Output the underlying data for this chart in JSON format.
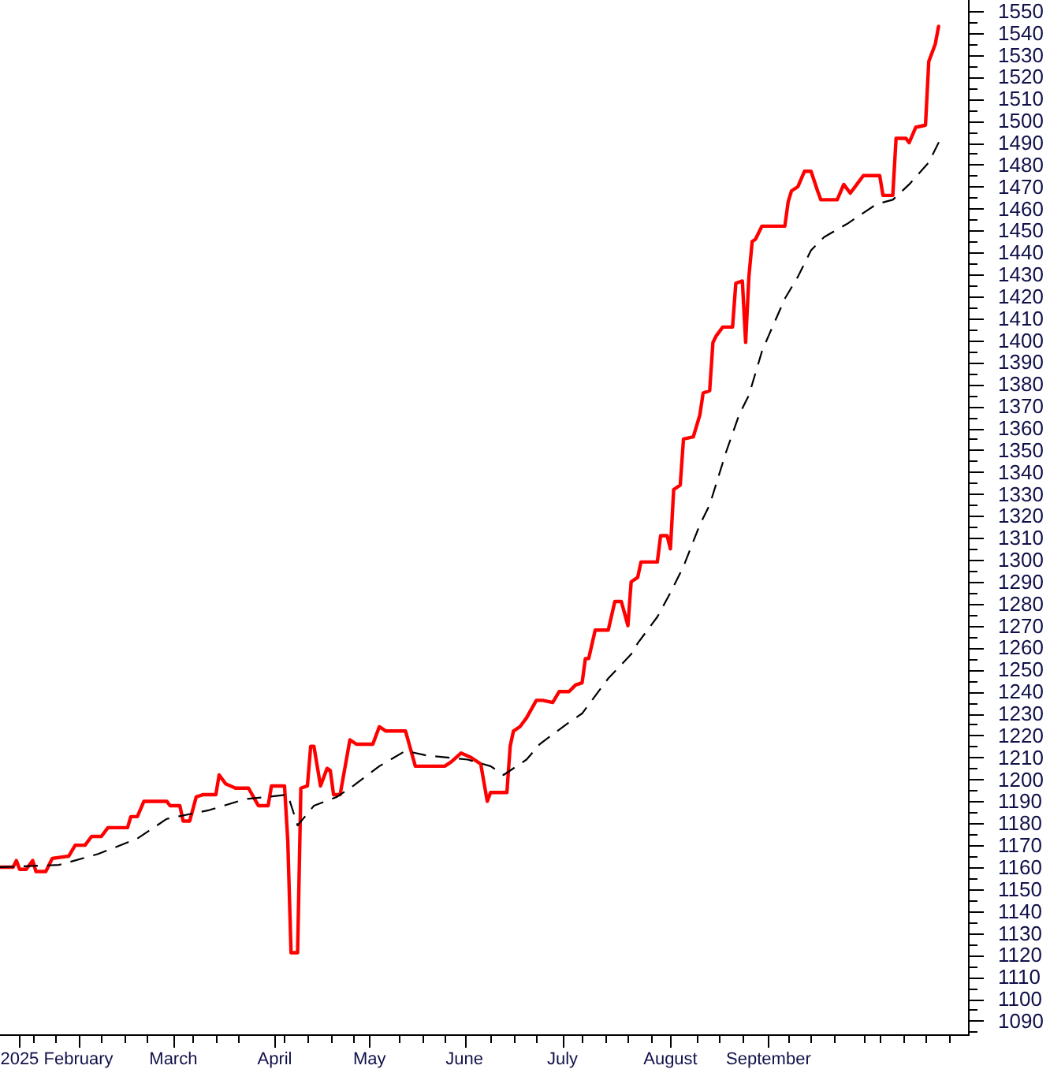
{
  "chart_data": {
    "type": "line",
    "xlim": [
      "2025-01-10",
      "2025-11-02"
    ],
    "xticks": [
      {
        "value": "2025-01-16",
        "label": "2025"
      },
      {
        "value": "2025-01-20",
        "label": null
      },
      {
        "value": "2025-01-27",
        "label": null
      },
      {
        "value": "2025-02-03",
        "label": "February"
      },
      {
        "value": "2025-02-10",
        "label": null
      },
      {
        "value": "2025-02-17",
        "label": null
      },
      {
        "value": "2025-02-24",
        "label": null
      },
      {
        "value": "2025-03-04",
        "label": "March"
      },
      {
        "value": "2025-03-10",
        "label": null
      },
      {
        "value": "2025-03-17",
        "label": null
      },
      {
        "value": "2025-03-24",
        "label": null
      },
      {
        "value": "2025-04-04",
        "label": "April"
      },
      {
        "value": "2025-04-07",
        "label": null
      },
      {
        "value": "2025-04-14",
        "label": null
      },
      {
        "value": "2025-04-21",
        "label": null
      },
      {
        "value": "2025-04-28",
        "label": null
      },
      {
        "value": "2025-05-03",
        "label": "May"
      },
      {
        "value": "2025-05-12",
        "label": null
      },
      {
        "value": "2025-05-19",
        "label": null
      },
      {
        "value": "2025-05-26",
        "label": null
      },
      {
        "value": "2025-06-01",
        "label": "June"
      },
      {
        "value": "2025-06-09",
        "label": null
      },
      {
        "value": "2025-06-16",
        "label": null
      },
      {
        "value": "2025-06-23",
        "label": null
      },
      {
        "value": "2025-07-01",
        "label": "July"
      },
      {
        "value": "2025-07-07",
        "label": null
      },
      {
        "value": "2025-07-14",
        "label": null
      },
      {
        "value": "2025-07-21",
        "label": null
      },
      {
        "value": "2025-07-28",
        "label": null
      },
      {
        "value": "2025-08-03",
        "label": "August"
      },
      {
        "value": "2025-08-11",
        "label": null
      },
      {
        "value": "2025-08-18",
        "label": null
      },
      {
        "value": "2025-08-25",
        "label": null
      },
      {
        "value": "2025-09-02",
        "label": "September"
      },
      {
        "value": "2025-09-08",
        "label": null
      },
      {
        "value": "2025-09-15",
        "label": null
      },
      {
        "value": "2025-09-22",
        "label": null
      },
      {
        "value": "2025-10-01",
        "label": null
      },
      {
        "value": "2025-10-06",
        "label": null
      },
      {
        "value": "2025-10-13",
        "label": null
      },
      {
        "value": "2025-10-20",
        "label": null
      },
      {
        "value": "2025-10-27",
        "label": null
      }
    ],
    "ylim": [
      1083.5,
      1555
    ],
    "yticks": [
      {
        "value": 1085,
        "label": null
      },
      1090,
      {
        "value": 1095,
        "label": null
      },
      1100,
      {
        "value": 1105,
        "label": null
      },
      1110,
      {
        "value": 1115,
        "label": null
      },
      1120,
      {
        "value": 1125,
        "label": null
      },
      1130,
      {
        "value": 1135,
        "label": null
      },
      1140,
      {
        "value": 1145,
        "label": null
      },
      1150,
      {
        "value": 1155,
        "label": null
      },
      1160,
      {
        "value": 1165,
        "label": null
      },
      1170,
      {
        "value": 1175,
        "label": null
      },
      1180,
      {
        "value": 1185,
        "label": null
      },
      1190,
      {
        "value": 1195,
        "label": null
      },
      1200,
      {
        "value": 1205,
        "label": null
      },
      1210,
      {
        "value": 1215,
        "label": null
      },
      1220,
      {
        "value": 1225,
        "label": null
      },
      1230,
      {
        "value": 1235,
        "label": null
      },
      1240,
      {
        "value": 1245,
        "label": null
      },
      1250,
      {
        "value": 1255,
        "label": null
      },
      1260,
      {
        "value": 1265,
        "label": null
      },
      1270,
      {
        "value": 1275,
        "label": null
      },
      1280,
      {
        "value": 1285,
        "label": null
      },
      1290,
      {
        "value": 1295,
        "label": null
      },
      1300,
      {
        "value": 1305,
        "label": null
      },
      1310,
      {
        "value": 1315,
        "label": null
      },
      1320,
      {
        "value": 1325,
        "label": null
      },
      1330,
      {
        "value": 1335,
        "label": null
      },
      1340,
      {
        "value": 1345,
        "label": null
      },
      1350,
      {
        "value": 1355,
        "label": null
      },
      1360,
      {
        "value": 1365,
        "label": null
      },
      1370,
      {
        "value": 1375,
        "label": null
      },
      1380,
      {
        "value": 1385,
        "label": null
      },
      1390,
      {
        "value": 1395,
        "label": null
      },
      1400,
      {
        "value": 1405,
        "label": null
      },
      1410,
      {
        "value": 1415,
        "label": null
      },
      1420,
      {
        "value": 1425,
        "label": null
      },
      1430,
      {
        "value": 1435,
        "label": null
      },
      1440,
      {
        "value": 1445,
        "label": null
      },
      1450,
      {
        "value": 1455,
        "label": null
      },
      1460,
      {
        "value": 1465,
        "label": null
      },
      1470,
      {
        "value": 1475,
        "label": null
      },
      1480,
      {
        "value": 1485,
        "label": null
      },
      1490,
      {
        "value": 1495,
        "label": null
      },
      1500,
      {
        "value": 1505,
        "label": null
      },
      1510,
      {
        "value": 1515,
        "label": null
      },
      1520,
      {
        "value": 1525,
        "label": null
      },
      1530,
      {
        "value": 1535,
        "label": null
      },
      1540,
      {
        "value": 1545,
        "label": null
      },
      1550
    ],
    "series": [
      {
        "color": "#ff0000",
        "line_style": "solid",
        "x": [
          "2025-01-10",
          "2025-01-14",
          "2025-01-15",
          "2025-01-16",
          "2025-01-18",
          "2025-01-20",
          "2025-01-21",
          "2025-01-24",
          "2025-01-26",
          "2025-01-31",
          "2025-02-02",
          "2025-02-05",
          "2025-02-07",
          "2025-02-10",
          "2025-02-12",
          "2025-02-18",
          "2025-02-19",
          "2025-02-21",
          "2025-02-23",
          "2025-03-02",
          "2025-03-03",
          "2025-03-06",
          "2025-03-07",
          "2025-03-09",
          "2025-03-11",
          "2025-03-13",
          "2025-03-17",
          "2025-03-18",
          "2025-03-20",
          "2025-03-23",
          "2025-03-27",
          "2025-03-30",
          "2025-04-02",
          "2025-04-03",
          "2025-04-07",
          "2025-04-08",
          "2025-04-09",
          "2025-04-11",
          "2025-04-12",
          "2025-04-14",
          "2025-04-15",
          "2025-04-16",
          "2025-04-18",
          "2025-04-20",
          "2025-04-21",
          "2025-04-22",
          "2025-04-24",
          "2025-04-27",
          "2025-04-29",
          "2025-05-04",
          "2025-05-06",
          "2025-05-08",
          "2025-05-14",
          "2025-05-17",
          "2025-05-26",
          "2025-05-28",
          "2025-05-31",
          "2025-06-03",
          "2025-06-06",
          "2025-06-08",
          "2025-06-09",
          "2025-06-14",
          "2025-06-15",
          "2025-06-16",
          "2025-06-18",
          "2025-06-20",
          "2025-06-23",
          "2025-06-25",
          "2025-06-28",
          "2025-06-30",
          "2025-07-03",
          "2025-07-05",
          "2025-07-07",
          "2025-07-08",
          "2025-07-09",
          "2025-07-11",
          "2025-07-15",
          "2025-07-17",
          "2025-07-19",
          "2025-07-21",
          "2025-07-22",
          "2025-07-24",
          "2025-07-25",
          "2025-07-30",
          "2025-07-31",
          "2025-08-02",
          "2025-08-03",
          "2025-08-04",
          "2025-08-06",
          "2025-08-07",
          "2025-08-10",
          "2025-08-12",
          "2025-08-13",
          "2025-08-15",
          "2025-08-16",
          "2025-08-17",
          "2025-08-19",
          "2025-08-22",
          "2025-08-23",
          "2025-08-25",
          "2025-08-26",
          "2025-08-27",
          "2025-08-28",
          "2025-08-29",
          "2025-08-31",
          "2025-09-07",
          "2025-09-08",
          "2025-09-09",
          "2025-09-11",
          "2025-09-13",
          "2025-09-15",
          "2025-09-17",
          "2025-09-18",
          "2025-09-23",
          "2025-09-25",
          "2025-09-27",
          "2025-09-29",
          "2025-10-01",
          "2025-10-06",
          "2025-10-07",
          "2025-10-10",
          "2025-10-11",
          "2025-10-14",
          "2025-10-15",
          "2025-10-17",
          "2025-10-20",
          "2025-10-21",
          "2025-10-23",
          "2025-10-24"
        ],
        "values": [
          1160,
          1160,
          1163,
          1159,
          1159,
          1163,
          1158,
          1158,
          1164,
          1165,
          1170,
          1170,
          1174,
          1174,
          1178,
          1178,
          1183,
          1183,
          1190,
          1190,
          1188,
          1188,
          1181,
          1181,
          1192,
          1193,
          1193,
          1202,
          1198,
          1196,
          1196,
          1188,
          1188,
          1197,
          1197,
          1172,
          1121,
          1121,
          1196,
          1197,
          1215,
          1215,
          1197,
          1205,
          1204,
          1193,
          1193,
          1218,
          1216,
          1216,
          1224,
          1222,
          1222,
          1206,
          1206,
          1208,
          1212,
          1210,
          1207,
          1190,
          1194,
          1194,
          1215,
          1222,
          1224,
          1228,
          1236,
          1236,
          1235,
          1240,
          1240,
          1243,
          1244,
          1255,
          1255,
          1268,
          1268,
          1281,
          1281,
          1270,
          1290,
          1292,
          1299,
          1299,
          1311,
          1311,
          1305,
          1332,
          1334,
          1355,
          1356,
          1366,
          1376,
          1377,
          1399,
          1402,
          1406,
          1406,
          1426,
          1427,
          1399,
          1429,
          1445,
          1446,
          1452,
          1452,
          1463,
          1468,
          1470,
          1477,
          1477,
          1468,
          1464,
          1464,
          1471,
          1467,
          1471,
          1475,
          1475,
          1466,
          1466,
          1492,
          1492,
          1490,
          1497,
          1498,
          1527,
          1535,
          1543
        ]
      },
      {
        "color": "#000000",
        "line_style": "dashed",
        "x": [
          "2025-01-10",
          "2025-01-28",
          "2025-02-09",
          "2025-02-21",
          "2025-03-02",
          "2025-03-15",
          "2025-03-26",
          "2025-04-08",
          "2025-04-11",
          "2025-04-16",
          "2025-04-23",
          "2025-04-28",
          "2025-05-06",
          "2025-05-14",
          "2025-05-20",
          "2025-06-02",
          "2025-06-09",
          "2025-06-13",
          "2025-06-20",
          "2025-06-24",
          "2025-07-03",
          "2025-07-07",
          "2025-07-12",
          "2025-07-15",
          "2025-07-22",
          "2025-07-24",
          "2025-07-30",
          "2025-08-03",
          "2025-08-07",
          "2025-08-12",
          "2025-08-15",
          "2025-08-20",
          "2025-08-24",
          "2025-08-27",
          "2025-08-31",
          "2025-09-02",
          "2025-09-07",
          "2025-09-11",
          "2025-09-15",
          "2025-09-19",
          "2025-09-26",
          "2025-10-01",
          "2025-10-05",
          "2025-10-10",
          "2025-10-15",
          "2025-10-21",
          "2025-10-25"
        ],
        "values": [
          1160,
          1161,
          1166,
          1173,
          1182,
          1186,
          1191,
          1193,
          1179,
          1188,
          1192,
          1197,
          1206,
          1213,
          1211,
          1209,
          1206,
          1202,
          1209,
          1216,
          1226,
          1230,
          1240,
          1246,
          1257,
          1262,
          1274,
          1285,
          1297,
          1316,
          1325,
          1349,
          1366,
          1375,
          1395,
          1402,
          1419,
          1429,
          1441,
          1447,
          1453,
          1458,
          1462,
          1464,
          1471,
          1481,
          1493
        ]
      }
    ]
  }
}
